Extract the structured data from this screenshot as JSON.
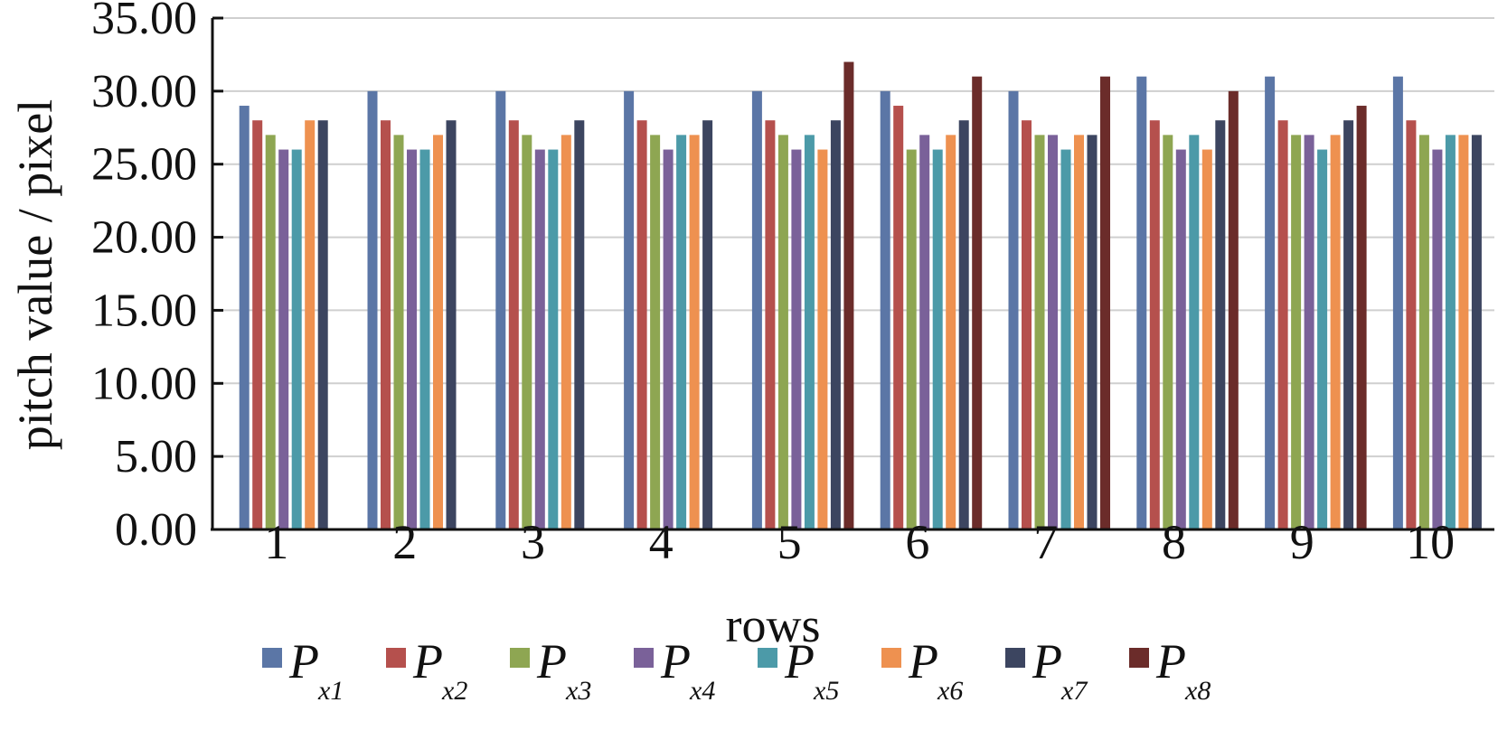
{
  "chart_data": {
    "type": "bar",
    "title": "",
    "xlabel": "rows",
    "ylabel": "pitch value / pixel",
    "categories": [
      "1",
      "2",
      "3",
      "4",
      "5",
      "6",
      "7",
      "8",
      "9",
      "10"
    ],
    "ylim": [
      0,
      35
    ],
    "yticks": [
      "0.00",
      "5.00",
      "10.00",
      "15.00",
      "20.00",
      "25.00",
      "30.00",
      "35.00"
    ],
    "grid": "horizontal",
    "legend_position": "bottom",
    "series": [
      {
        "name": "P",
        "subscript": "x1",
        "color": "#5b76a6",
        "values": [
          29,
          30,
          30,
          30,
          30,
          30,
          30,
          31,
          31,
          31
        ]
      },
      {
        "name": "P",
        "subscript": "x2",
        "color": "#b5504d",
        "values": [
          28,
          28,
          28,
          28,
          28,
          29,
          28,
          28,
          28,
          28
        ]
      },
      {
        "name": "P",
        "subscript": "x3",
        "color": "#8ea652",
        "values": [
          27,
          27,
          27,
          27,
          27,
          26,
          27,
          27,
          27,
          27
        ]
      },
      {
        "name": "P",
        "subscript": "x4",
        "color": "#7a6199",
        "values": [
          26,
          26,
          26,
          26,
          26,
          27,
          27,
          26,
          27,
          26
        ]
      },
      {
        "name": "P",
        "subscript": "x5",
        "color": "#4c9aa8",
        "values": [
          26,
          26,
          26,
          27,
          27,
          26,
          26,
          27,
          26,
          27
        ]
      },
      {
        "name": "P",
        "subscript": "x6",
        "color": "#ee9150",
        "values": [
          28,
          27,
          27,
          27,
          26,
          27,
          27,
          26,
          27,
          27
        ]
      },
      {
        "name": "P",
        "subscript": "x7",
        "color": "#3c4560",
        "values": [
          28,
          28,
          28,
          28,
          28,
          28,
          27,
          28,
          28,
          27
        ]
      },
      {
        "name": "P",
        "subscript": "x8",
        "color": "#6b2c2a",
        "values": [
          null,
          null,
          null,
          null,
          32,
          31,
          31,
          30,
          29,
          null
        ]
      }
    ]
  }
}
